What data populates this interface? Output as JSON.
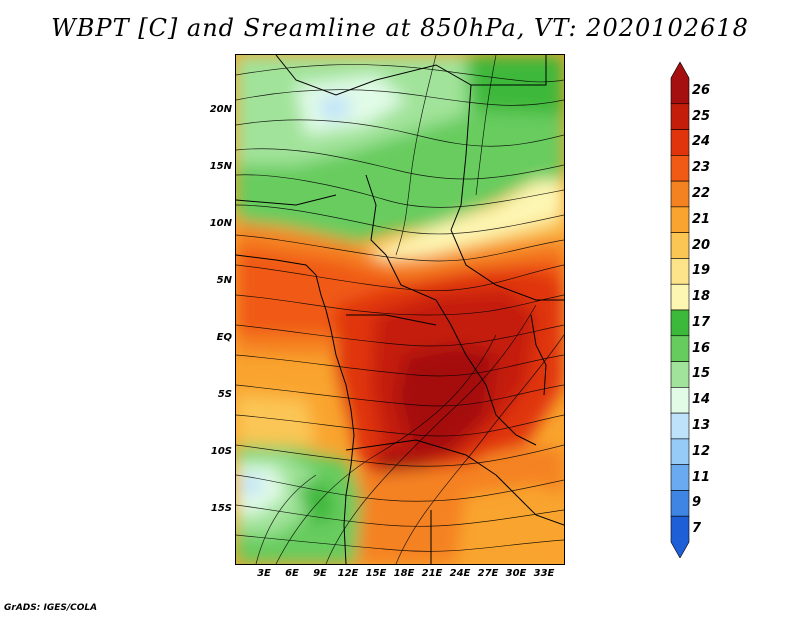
{
  "title": "WBPT [C] and Sreamline at 850hPa, VT: 2020102618",
  "lat_labels": [
    "20N",
    "15N",
    "10N",
    "5N",
    "EQ",
    "5S",
    "10S",
    "15S"
  ],
  "lon_labels": [
    "3E",
    "6E",
    "9E",
    "12E",
    "15E",
    "18E",
    "21E",
    "24E",
    "27E",
    "30E",
    "33E"
  ],
  "colorbar": {
    "levels": [
      "26",
      "25",
      "24",
      "23",
      "22",
      "21",
      "20",
      "19",
      "18",
      "17",
      "16",
      "15",
      "14",
      "13",
      "12",
      "11",
      "9",
      "7"
    ],
    "colors": [
      "#a50f0f",
      "#c41e0a",
      "#e0350c",
      "#f05a14",
      "#f58220",
      "#f9a42e",
      "#fbc654",
      "#fde38a",
      "#fdf6b3",
      "#3cb83a",
      "#67cc5e",
      "#a1e39a",
      "#e1fbe7",
      "#bfe2fb",
      "#96cbf7",
      "#6aaaf0",
      "#3e85e4",
      "#1e5ed6"
    ]
  },
  "footer": "GrADS: IGES/COLA"
}
